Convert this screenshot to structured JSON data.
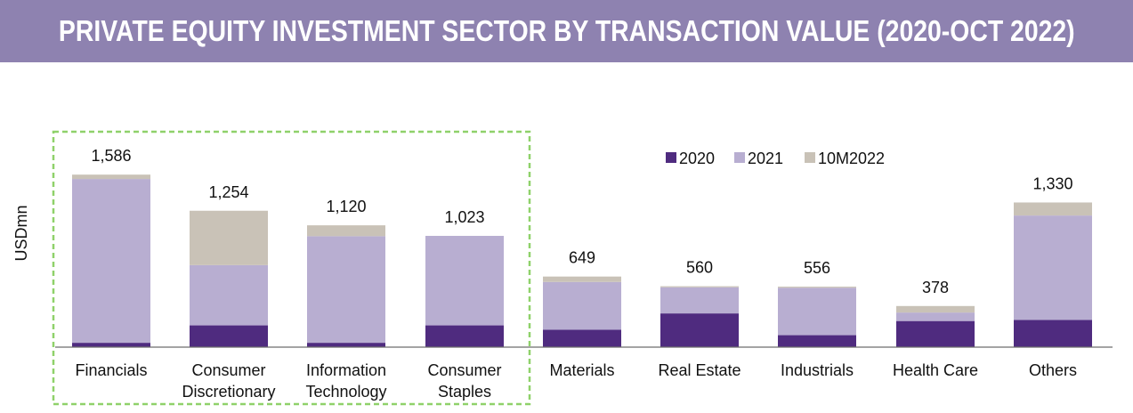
{
  "title": "PRIVATE EQUITY INVESTMENT SECTOR BY TRANSACTION VALUE (2020-OCT 2022)",
  "colors": {
    "title_bar": "#8e82b0",
    "s2020": "#4f2b7f",
    "s2021": "#b8aed1",
    "s10m2022": "#c9c2b7",
    "highlight_box": "#8fd16a"
  },
  "chart_data": {
    "type": "bar",
    "stacked": true,
    "ylabel": "USDmn",
    "categories": [
      [
        "Financials"
      ],
      [
        "Consumer",
        "Discretionary"
      ],
      [
        "Information",
        "Technology"
      ],
      [
        "Consumer",
        "Staples"
      ],
      [
        "Materials"
      ],
      [
        "Real Estate"
      ],
      [
        "Industrials"
      ],
      [
        "Health Care"
      ],
      [
        "Others"
      ]
    ],
    "series": [
      {
        "name": "2020",
        "values": [
          40,
          200,
          40,
          200,
          160,
          310,
          110,
          240,
          250
        ]
      },
      {
        "name": "2021",
        "values": [
          1506,
          554,
          980,
          823,
          439,
          240,
          436,
          78,
          960
        ]
      },
      {
        "name": "10M2022",
        "values": [
          40,
          500,
          100,
          0,
          50,
          10,
          10,
          60,
          120
        ]
      }
    ],
    "totals": [
      "1,586",
      "1,254",
      "1,120",
      "1,023",
      "649",
      "560",
      "556",
      "378",
      "1,330"
    ],
    "ylim": [
      0,
      1700
    ],
    "legend_position": "top-right",
    "highlight_group": [
      0,
      3
    ]
  }
}
